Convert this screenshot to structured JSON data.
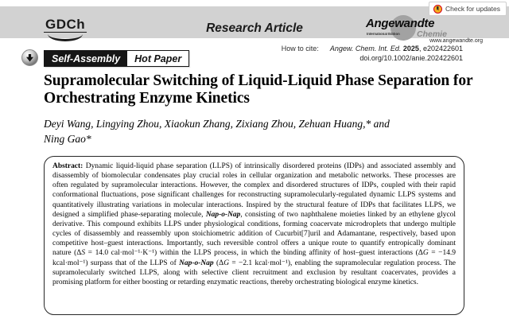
{
  "header": {
    "gdch_logo": "GDCh",
    "section_label": "Research Article",
    "angewandte": {
      "name": "Angewandte",
      "edition": "International Edition",
      "chemie": "Chemie",
      "website": "www.angewandte.org"
    },
    "check_updates_label": "Check for updates"
  },
  "badges": {
    "keyword": "Self-Assembly",
    "hot_paper": "Hot Paper"
  },
  "citation": {
    "how_to_cite_label": "How to cite:",
    "journal": "Angew. Chem. Int. Ed.",
    "year": "2025",
    "article_id": ", e202422601",
    "doi": "doi.org/10.1002/anie.202422601"
  },
  "article": {
    "title_line1": "Supramolecular Switching of Liquid-Liquid Phase Separation for",
    "title_line2": "Orchestrating Enzyme Kinetics",
    "authors_line1": "Deyi Wang, Lingying Zhou, Xiaokun Zhang, Zixiang Zhou, Zehuan Huang,* and",
    "authors_line2": "Ning Gao*"
  },
  "abstract": {
    "segments": [
      {
        "style": "bold",
        "text": "Abstract: "
      },
      {
        "style": "normal",
        "text": "Dynamic liquid-liquid phase separation (LLPS) of intrinsically disordered proteins (IDPs) and associated assembly and disassembly of biomolecular condensates play crucial roles in cellular organization and metabolic networks. These processes are often regulated by supramolecular interactions. However, the complex and disordered structures of IDPs, coupled with their rapid conformational fluctuations, pose significant challenges for reconstructing supramolecularly-regulated dynamic LLPS systems and quantitatively illustrating variations in molecular interactions. Inspired by the structural feature of IDPs that facilitates LLPS, we designed a simplified phase-separating molecule, "
      },
      {
        "style": "bold-italic",
        "text": "Nap-o-Nap"
      },
      {
        "style": "normal",
        "text": ", consisting of two naphthalene moieties linked by an ethylene glycol derivative. This compound exhibits LLPS under physiological conditions, forming coacervate microdroplets that undergo multiple cycles of disassembly and reassembly upon stoichiometric addition of Cucurbit[7]uril and Adamantane, respectively, based upon competitive host–guest interactions. Importantly, such reversible control offers a unique route to quantify entropically dominant nature (Δ"
      },
      {
        "style": "italic",
        "text": "S"
      },
      {
        "style": "normal",
        "text": " = 14.0 cal·mol⁻¹·K⁻¹) within the LLPS process, in which the binding affinity of host–guest interactions (Δ"
      },
      {
        "style": "italic",
        "text": "G"
      },
      {
        "style": "normal",
        "text": " = −14.9 kcal·mol⁻¹) surpass that of the LLPS of "
      },
      {
        "style": "bold-italic",
        "text": "Nap-o-Nap"
      },
      {
        "style": "normal",
        "text": " (Δ"
      },
      {
        "style": "italic",
        "text": "G"
      },
      {
        "style": "normal",
        "text": " = −2.1 kcal·mol⁻¹), enabling the supramolecular regulation process. The supramolecularly switched LLPS, along with selective client recruitment and exclusion by resultant coacervates, provides a promising platform for either boosting or retarding enzymatic reactions, thereby orchestrating biological enzyme kinetics."
      }
    ]
  },
  "colors": {
    "header_bar": "#d2d2d2",
    "badge_dark_bg": "#161616",
    "crossmark_red": "#d0021b",
    "crossmark_yellow": "#f6b221",
    "chemie_gray": "#8a8a8a"
  }
}
